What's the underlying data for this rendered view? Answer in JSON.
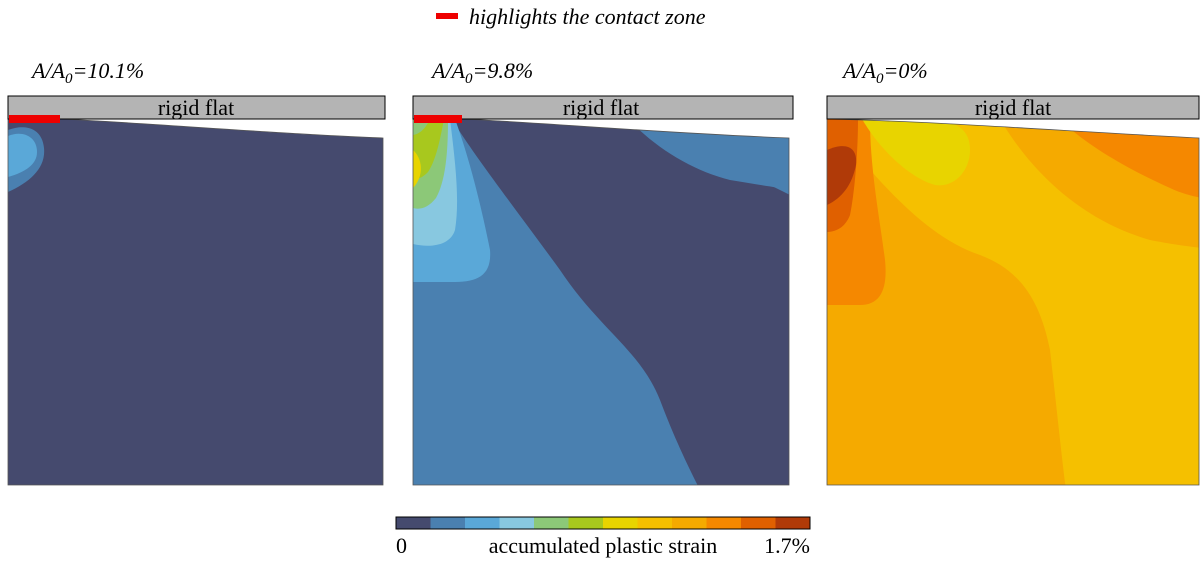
{
  "legend": {
    "text": "highlights the contact zone",
    "swatch_color": "#ee0000"
  },
  "panels": [
    {
      "ratio_label": "A/A",
      "ratio_sub": "0",
      "ratio_value": "=10.1%",
      "flat_label": "rigid flat"
    },
    {
      "ratio_label": "A/A",
      "ratio_sub": "0",
      "ratio_value": "=9.8%",
      "flat_label": "rigid flat"
    },
    {
      "ratio_label": "A/A",
      "ratio_sub": "0",
      "ratio_value": "=0%",
      "flat_label": "rigid flat"
    }
  ],
  "colorbar": {
    "min_label": "0",
    "title": "accumulated plastic strain",
    "max_label": "1.7%",
    "colors": [
      "#454a6e",
      "#4a80b0",
      "#5aa8d8",
      "#88c8e0",
      "#8cc878",
      "#a8c81e",
      "#e8d400",
      "#f5c000",
      "#f5aa00",
      "#f58800",
      "#e06000",
      "#b03a08"
    ]
  },
  "colors": {
    "flat_fill": "#b4b4b4",
    "contact_zone": "#ee0000",
    "edge": "#000000"
  }
}
